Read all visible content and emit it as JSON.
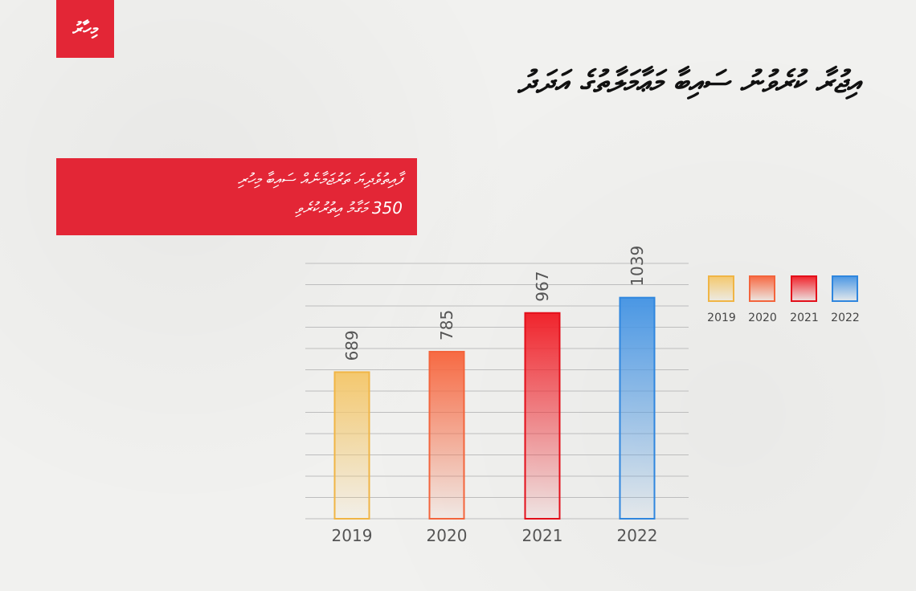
{
  "header": {
    "logo_text": "މިހާރު",
    "title": "އިޖުރާ ކުރެވުނު ސައިބާ މަޢާމަލާތުގެ އަދަދު"
  },
  "banner": {
    "line1": "ފާއިތުވެދިޔަ ތަރުޖަމާނެއް ސައިބާ މިހުރި",
    "line2": "350 މަގާމު އިތުރުކުރެވި"
  },
  "colors": {
    "brand": "#e32636",
    "2019": "#f0b545",
    "2020": "#f3643c",
    "2021": "#e30f1a",
    "2022": "#2f86de"
  },
  "chart_data": {
    "type": "bar",
    "categories": [
      "2019",
      "2020",
      "2021",
      "2022"
    ],
    "values": [
      689,
      785,
      967,
      1039
    ],
    "ylim": [
      0,
      1200
    ],
    "grid": true,
    "legend": [
      "2019",
      "2020",
      "2021",
      "2022"
    ],
    "legend_position": "right",
    "title": "",
    "xlabel": "",
    "ylabel": ""
  }
}
